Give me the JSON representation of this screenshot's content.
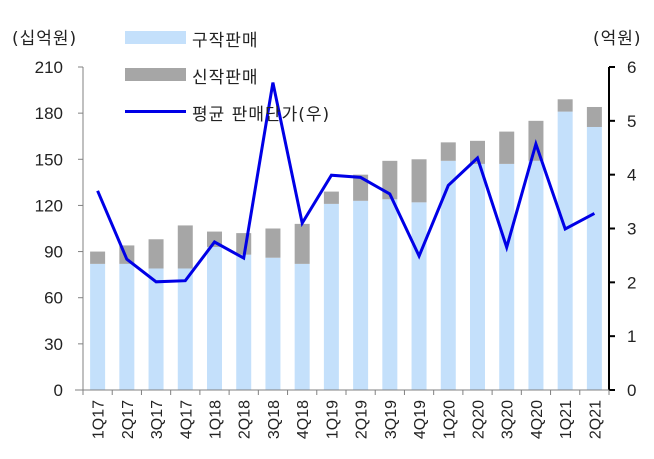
{
  "chart_data": {
    "type": "bar",
    "subtype": "stacked-bar-with-line-secondary-axis",
    "title": "",
    "left_axis": {
      "unit_label": "(십억원)",
      "ticks": [
        0,
        30,
        60,
        90,
        120,
        150,
        180,
        210
      ],
      "ylim": [
        0,
        210
      ]
    },
    "right_axis": {
      "unit_label": "(억원)",
      "ticks": [
        0,
        1,
        2,
        3,
        4,
        5,
        6
      ],
      "ylim": [
        0,
        6
      ]
    },
    "categories": [
      "1Q17",
      "2Q17",
      "3Q17",
      "4Q17",
      "1Q18",
      "2Q18",
      "3Q18",
      "4Q18",
      "1Q19",
      "2Q19",
      "3Q19",
      "4Q19",
      "1Q20",
      "2Q20",
      "3Q20",
      "4Q20",
      "1Q21",
      "2Q21"
    ],
    "series": [
      {
        "name": "구작판매",
        "type": "bar",
        "axis": "left",
        "color": "#c4e0fb",
        "values": [
          82,
          82,
          79,
          79,
          93,
          88,
          86,
          82,
          121,
          123,
          124,
          122,
          149,
          147,
          147,
          149,
          181,
          171
        ]
      },
      {
        "name": "신작판매",
        "type": "bar",
        "axis": "left",
        "color": "#a6a6a6",
        "values": [
          8,
          12,
          19,
          28,
          10,
          14,
          19,
          26,
          8,
          17,
          25,
          28,
          12,
          15,
          21,
          26,
          8,
          13
        ]
      },
      {
        "name": "평균 판매단가(우)",
        "type": "line",
        "axis": "right",
        "color": "#0000e6",
        "values": [
          3.7,
          2.43,
          2.01,
          2.03,
          2.75,
          2.45,
          5.71,
          3.1,
          3.99,
          3.95,
          3.64,
          2.49,
          3.8,
          4.31,
          2.65,
          4.57,
          2.99,
          3.28
        ]
      }
    ],
    "legend": [
      "구작판매",
      "신작판매",
      "평균 판매단가(우)"
    ],
    "legend_position": "top-left inside",
    "grid": false
  },
  "labels": {
    "left_unit": "(십억원)",
    "right_unit": "(억원)",
    "legend_old": "구작판매",
    "legend_new": "신작판매",
    "legend_line": "평균 판매단가(우)"
  }
}
